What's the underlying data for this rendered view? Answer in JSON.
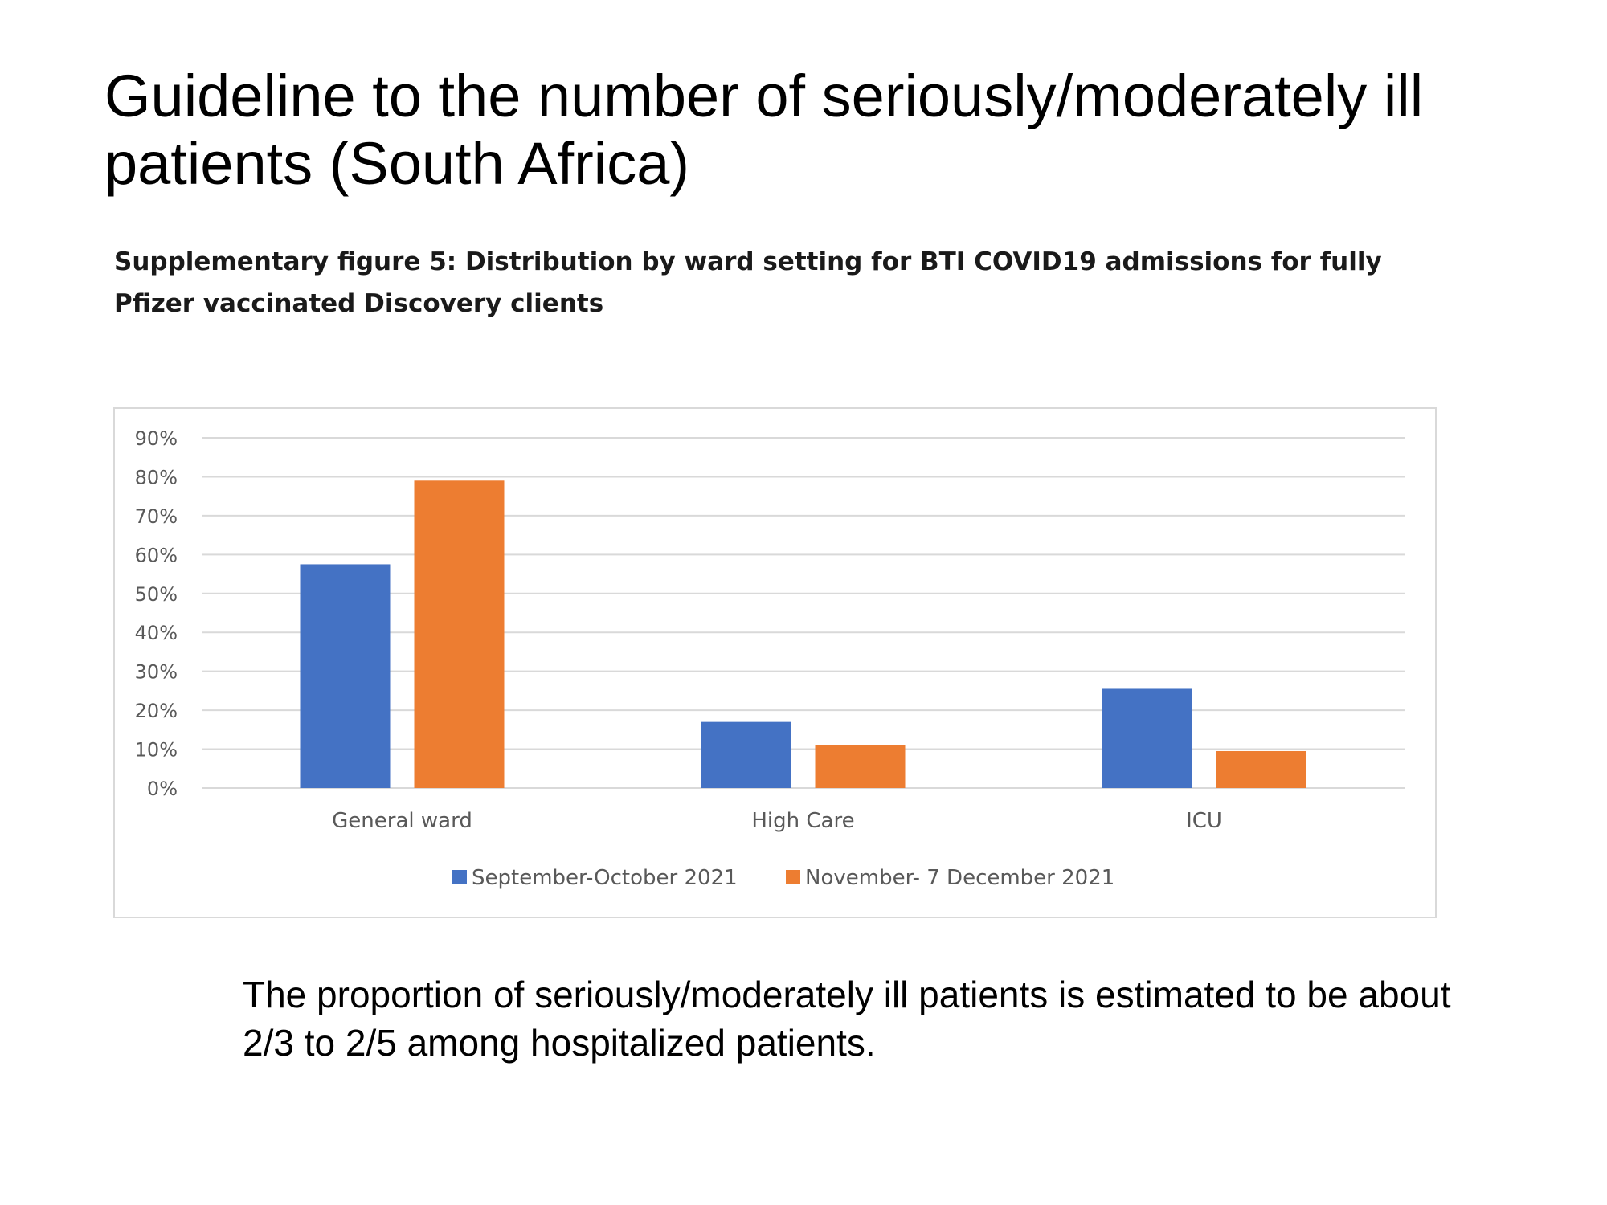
{
  "slide": {
    "title": "Guideline to the number of seriously/moderately ill patients (South Africa)",
    "figure_caption": "Supplementary figure 5: Distribution by ward setting for BTI COVID19 admissions for fully Pfizer vaccinated Discovery clients",
    "footnote": "The proportion of seriously/moderately ill patients is estimated to be about 2/3 to 2/5 among hospitalized patients."
  },
  "chart_data": {
    "type": "bar",
    "title": "",
    "xlabel": "",
    "ylabel": "",
    "categories": [
      "General ward",
      "High Care",
      "ICU"
    ],
    "series": [
      {
        "name": "September-October 2021",
        "values": [
          57.5,
          17,
          25.5
        ],
        "color": "#4472C4"
      },
      {
        "name": "November- 7 December 2021",
        "values": [
          79,
          11,
          9.5
        ],
        "color": "#ED7D31"
      }
    ],
    "ylim": [
      0,
      90
    ],
    "yticks": [
      "0%",
      "10%",
      "20%",
      "30%",
      "40%",
      "50%",
      "60%",
      "70%",
      "80%",
      "90%"
    ],
    "grid": true,
    "legend_position": "bottom",
    "gridline_color": "#d9d9d9"
  }
}
